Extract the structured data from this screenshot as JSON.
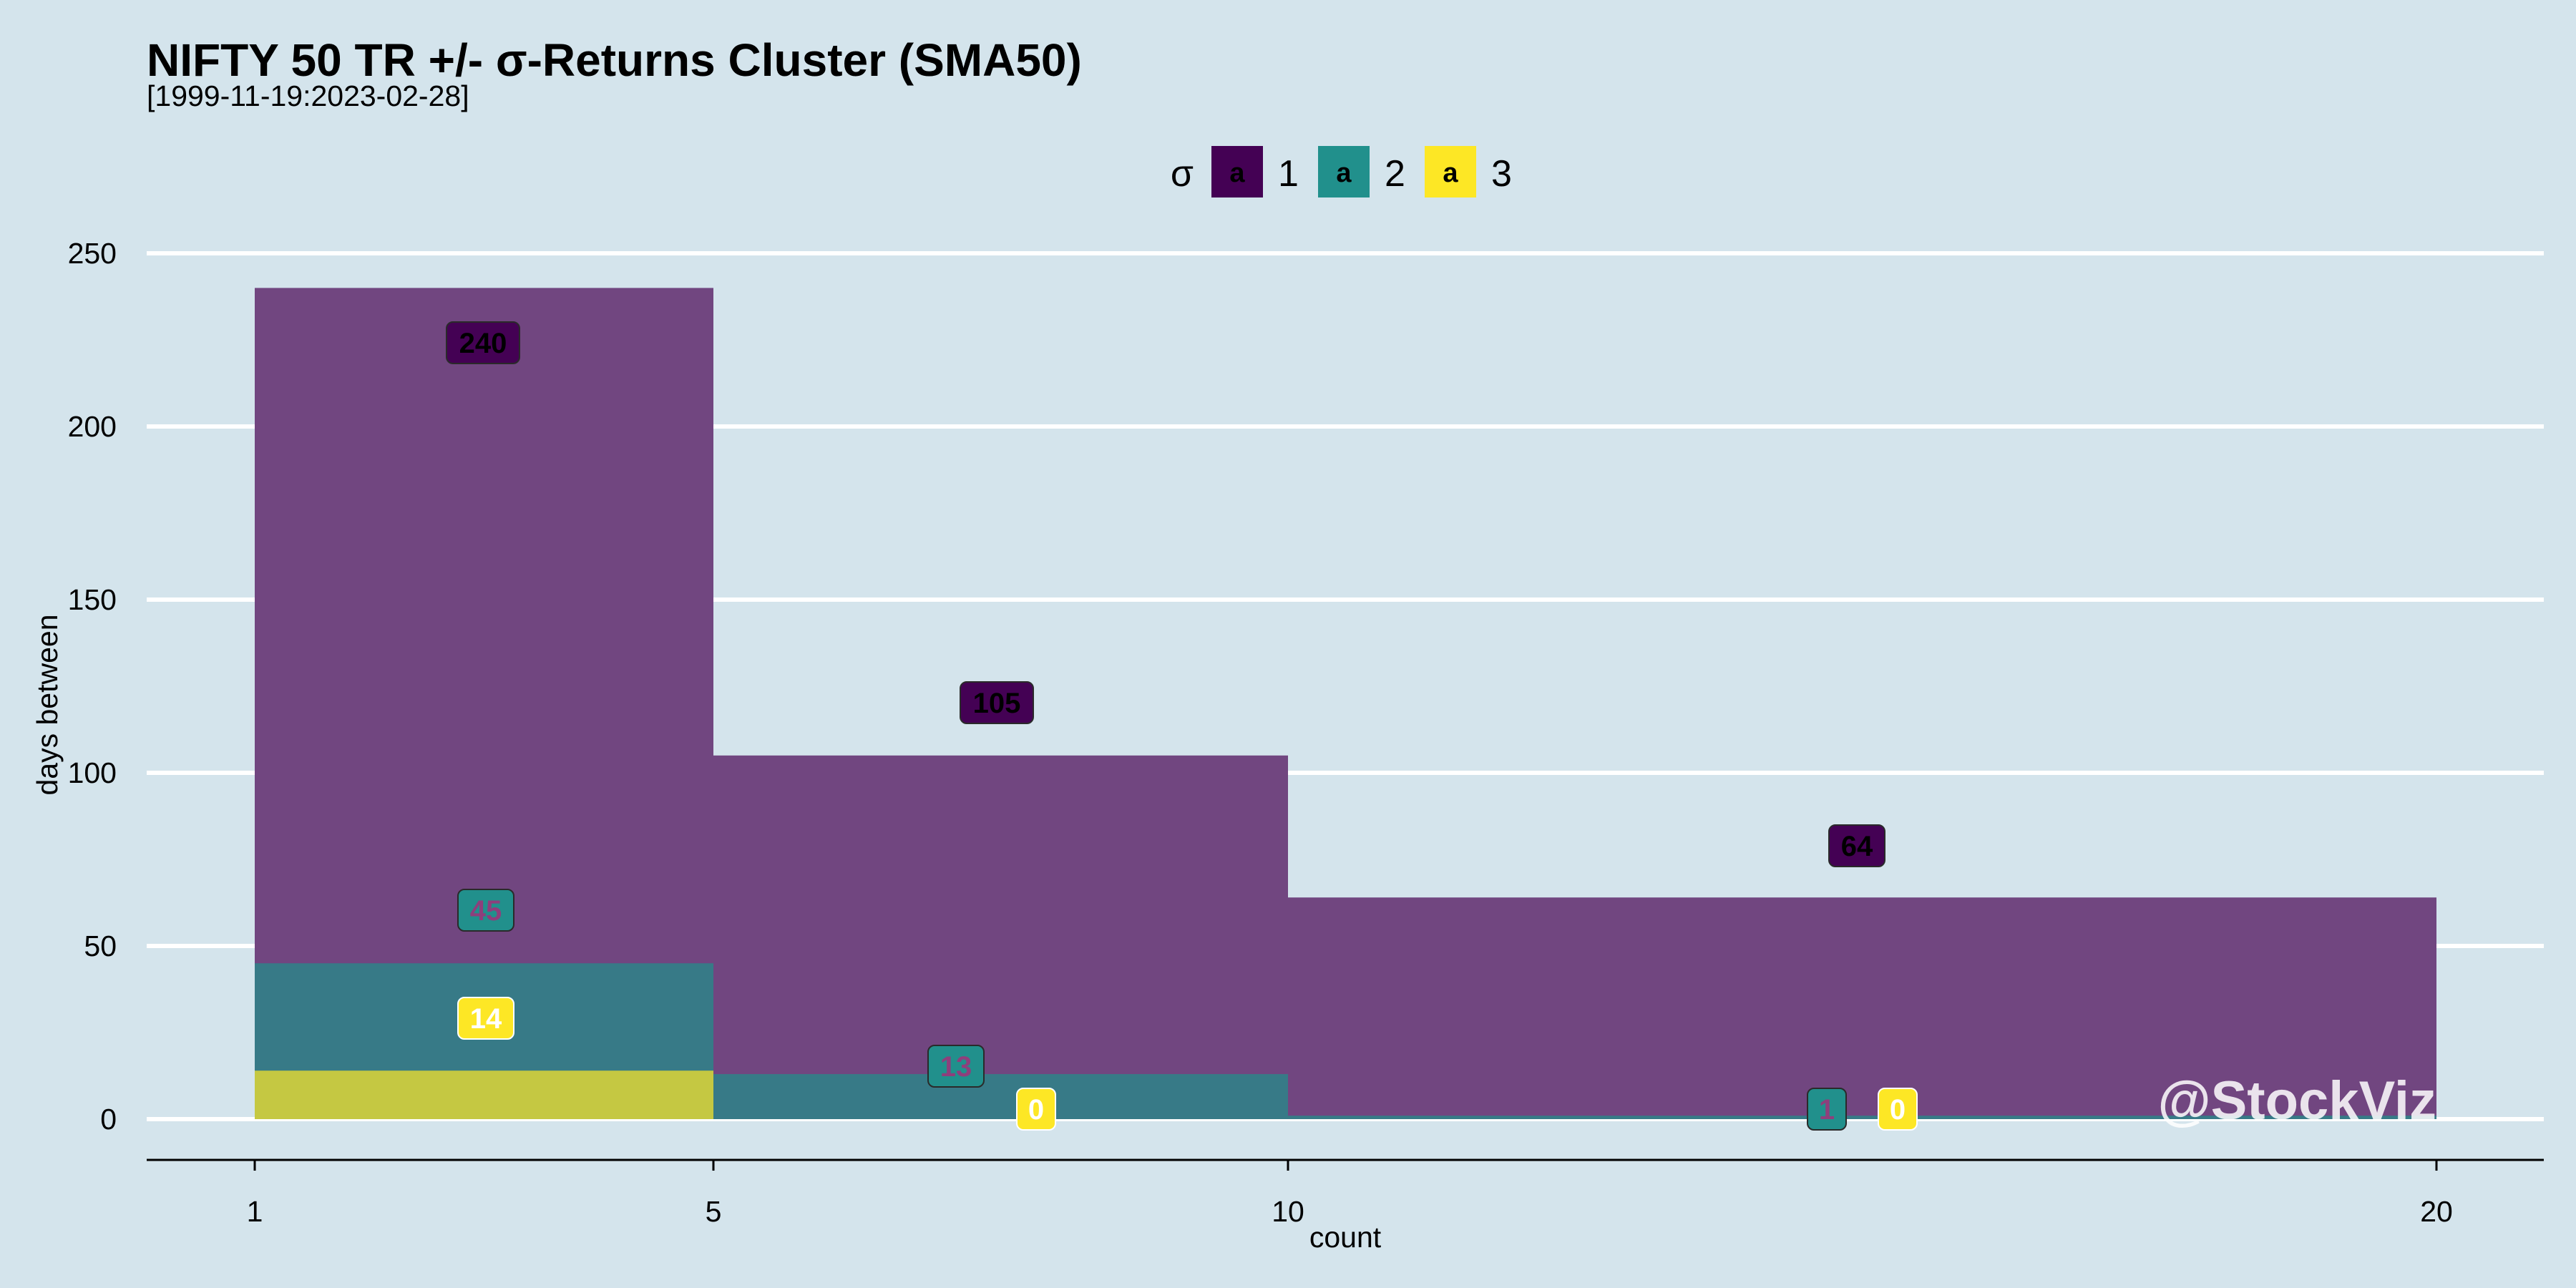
{
  "chart_data": {
    "type": "bar",
    "title": "NIFTY 50 TR +/- σ-Returns Cluster (SMA50)",
    "subtitle": "[1999-11-19:2023-02-28]",
    "xlabel": "count",
    "ylabel": "days between",
    "x_ticks": [
      1,
      5,
      10,
      20
    ],
    "y_ticks": [
      0,
      50,
      100,
      150,
      200,
      250
    ],
    "ylim": [
      0,
      250
    ],
    "bins": [
      [
        1,
        5
      ],
      [
        5,
        10
      ],
      [
        10,
        20
      ]
    ],
    "legend": {
      "title": "σ",
      "key_glyph": "a",
      "placement": "top"
    },
    "grid": true,
    "series": [
      {
        "name": "1",
        "color": "#440154",
        "values": [
          240,
          105,
          64
        ]
      },
      {
        "name": "2",
        "color": "#21908c",
        "values": [
          45,
          13,
          1
        ]
      },
      {
        "name": "3",
        "color": "#fde725",
        "values": [
          14,
          0,
          0
        ]
      }
    ],
    "bar_colors": [
      "#714680",
      "#377a87",
      "#c5c842"
    ],
    "watermark": "@StockViz"
  }
}
